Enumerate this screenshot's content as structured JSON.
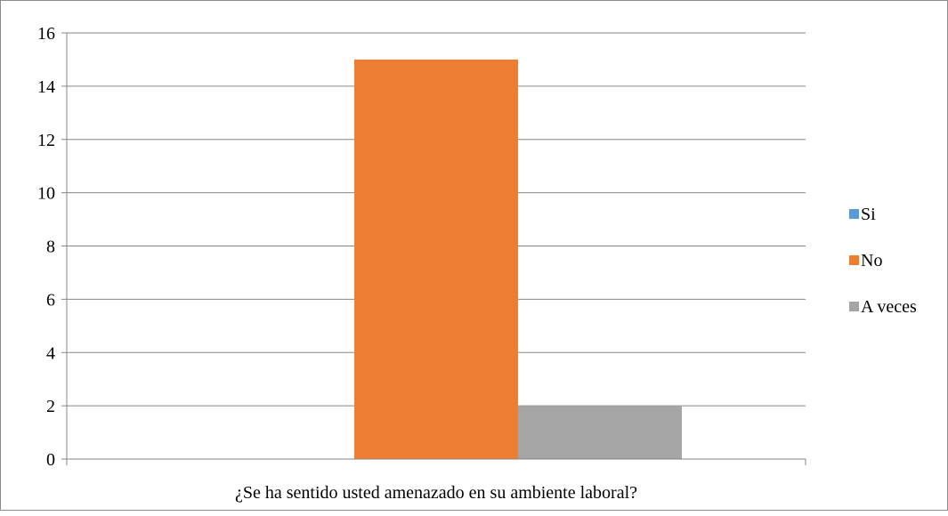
{
  "chart_data": {
    "type": "bar",
    "categories": [
      "¿Se ha sentido usted amenazado en su ambiente laboral?"
    ],
    "series": [
      {
        "name": "Si",
        "values": [
          0
        ],
        "color": "#5b9bd5"
      },
      {
        "name": "No",
        "values": [
          15
        ],
        "color": "#ed7d31"
      },
      {
        "name": "A veces",
        "values": [
          2
        ],
        "color": "#a5a5a5"
      }
    ],
    "title": "",
    "xlabel": "",
    "ylabel": "",
    "ylim": [
      0,
      16
    ],
    "yticks": [
      "0",
      "2",
      "4",
      "6",
      "8",
      "10",
      "12",
      "14",
      "16"
    ],
    "grid": true,
    "legend_position": "right",
    "colors": {
      "grid": "#868686",
      "axis": "#868686"
    }
  }
}
